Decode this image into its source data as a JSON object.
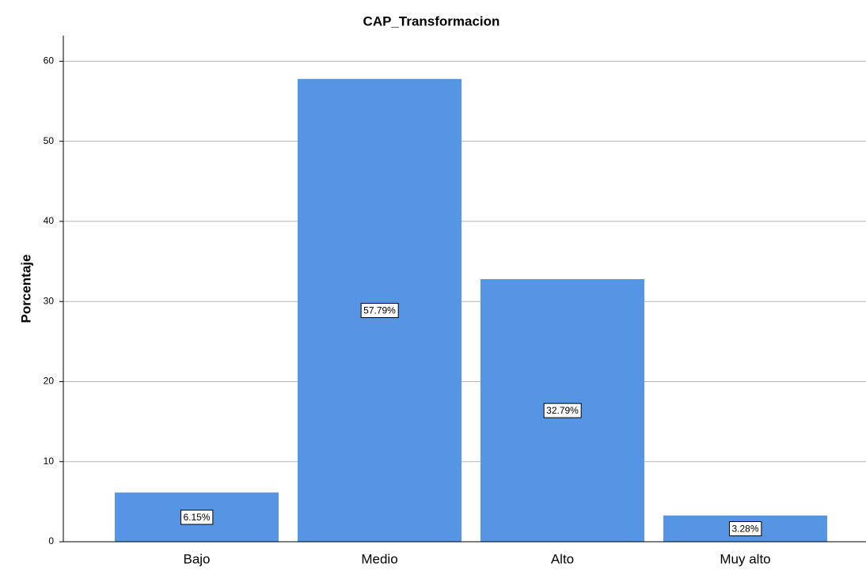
{
  "chart_data": {
    "type": "bar",
    "title": "CAP_Transformacion",
    "y_label": "Porcentaje",
    "categories": [
      "Bajo",
      "Medio",
      "Alto",
      "Muy alto"
    ],
    "values": [
      6.15,
      57.79,
      32.79,
      3.28
    ],
    "value_labels": [
      "6.15%",
      "57.79%",
      "32.79%",
      "3.28%"
    ],
    "color": "#5595e3",
    "ylim": [
      0,
      63.2
    ],
    "yticks": [
      0,
      10,
      20,
      30,
      40,
      50,
      60
    ],
    "grid": true
  }
}
